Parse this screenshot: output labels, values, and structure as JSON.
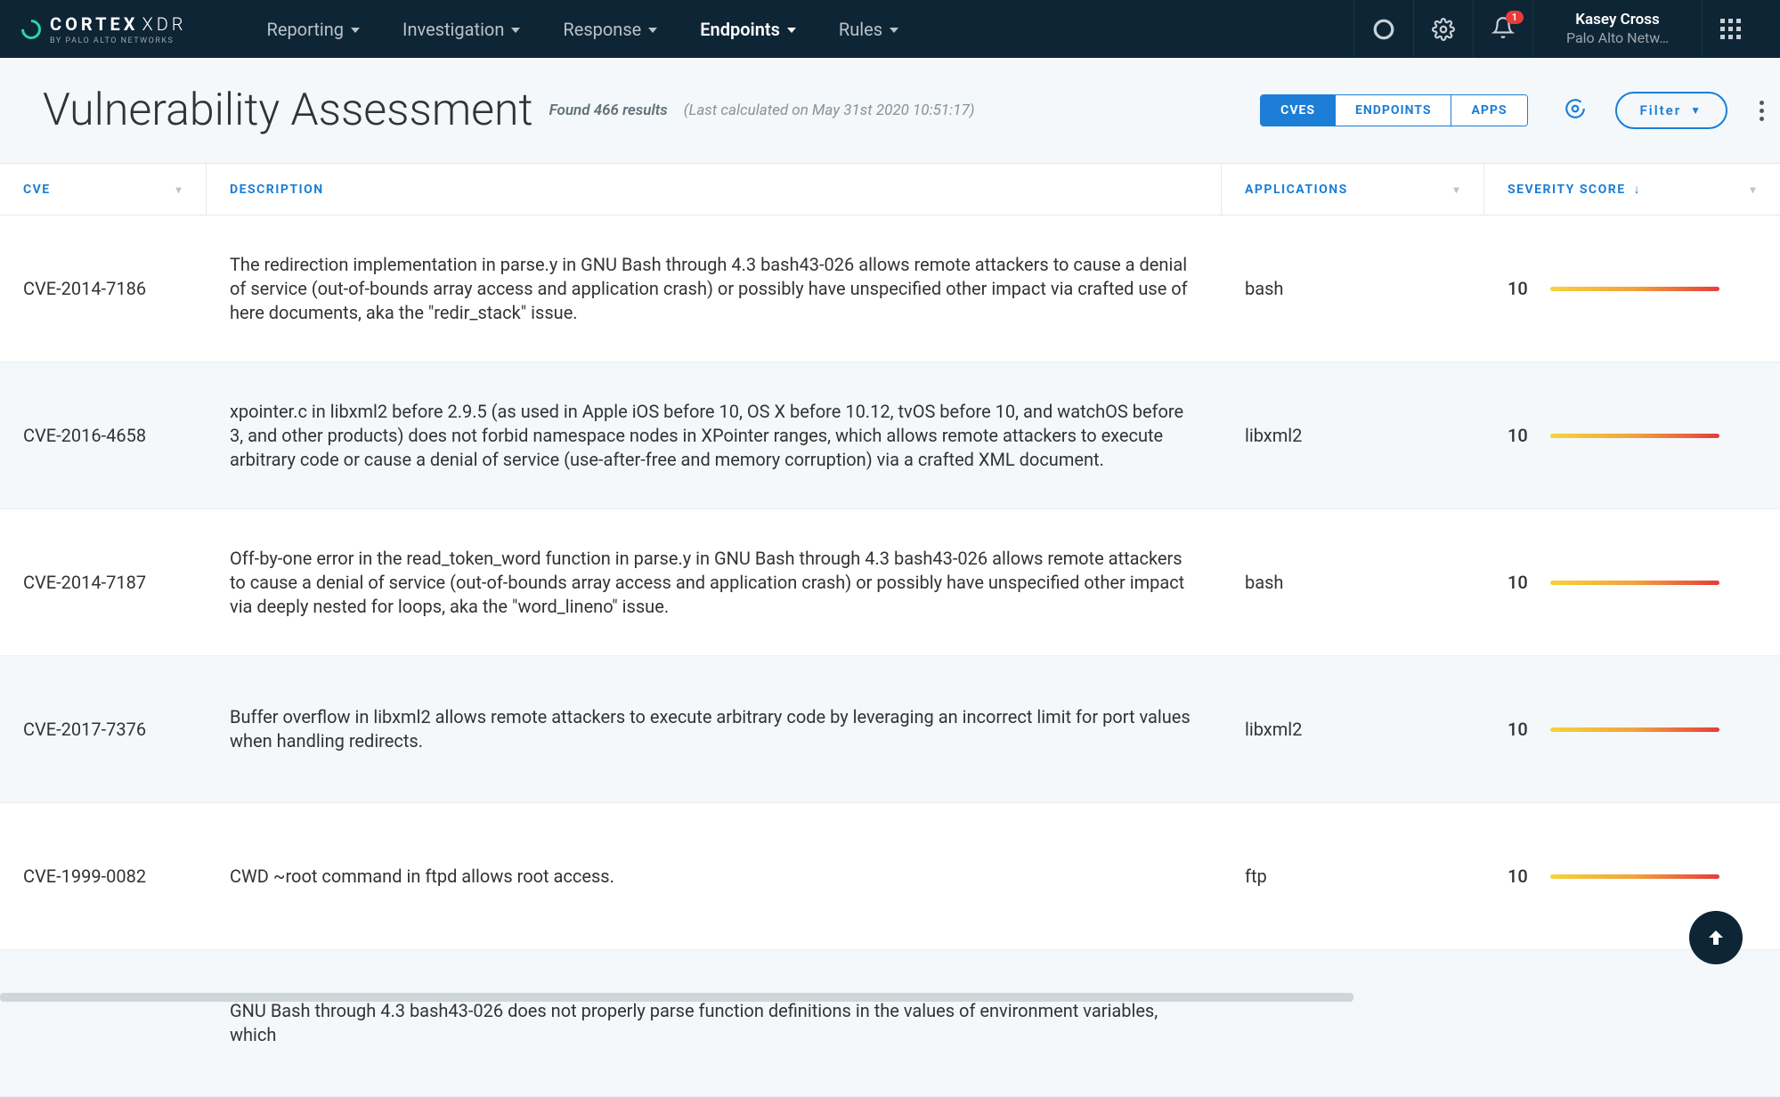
{
  "brand": {
    "main": "CORTEX",
    "suffix": "XDR",
    "sub": "BY PALO ALTO NETWORKS",
    "accent": "#2bd6a6"
  },
  "nav": {
    "items": [
      {
        "label": "Reporting",
        "active": false
      },
      {
        "label": "Investigation",
        "active": false
      },
      {
        "label": "Response",
        "active": false
      },
      {
        "label": "Endpoints",
        "active": true
      },
      {
        "label": "Rules",
        "active": false
      }
    ]
  },
  "user": {
    "name": "Kasey Cross",
    "org": "Palo Alto Netw…",
    "notification_count": "1"
  },
  "page": {
    "title": "Vulnerability Assessment",
    "results_found": "Found 466 results",
    "last_calculated": "(Last calculated on May 31st 2020 10:51:17)",
    "filter_label": "Filter"
  },
  "views": [
    {
      "label": "CVES",
      "active": true
    },
    {
      "label": "ENDPOINTS",
      "active": false
    },
    {
      "label": "APPS",
      "active": false
    }
  ],
  "columns": {
    "cve": "CVE",
    "description": "DESCRIPTION",
    "applications": "APPLICATIONS",
    "severity": "SEVERITY SCORE"
  },
  "rows": [
    {
      "cve": "CVE-2014-7186",
      "description": "The redirection implementation in parse.y in GNU Bash through 4.3 bash43-026 allows remote attackers to cause a denial of service (out-of-bounds array access and application crash) or possibly have unspecified other impact via crafted use of here documents, aka the \"redir_stack\" issue.",
      "applications": "bash",
      "severity": "10"
    },
    {
      "cve": "CVE-2016-4658",
      "description": "xpointer.c in libxml2 before 2.9.5 (as used in Apple iOS before 10, OS X before 10.12, tvOS before 10, and watchOS before 3, and other products) does not forbid namespace nodes in XPointer ranges, which allows remote attackers to execute arbitrary code or cause a denial of service (use-after-free and memory corruption) via a crafted XML document.",
      "applications": "libxml2",
      "severity": "10"
    },
    {
      "cve": "CVE-2014-7187",
      "description": "Off-by-one error in the read_token_word function in parse.y in GNU Bash through 4.3 bash43-026 allows remote attackers to cause a denial of service (out-of-bounds array access and application crash) or possibly have unspecified other impact via deeply nested for loops, aka the \"word_lineno\" issue.",
      "applications": "bash",
      "severity": "10"
    },
    {
      "cve": "CVE-2017-7376",
      "description": "Buffer overflow in libxml2 allows remote attackers to execute arbitrary code by leveraging an incorrect limit for port values when handling redirects.",
      "applications": "libxml2",
      "severity": "10"
    },
    {
      "cve": "CVE-1999-0082",
      "description": "CWD ~root command in ftpd allows root access.",
      "applications": "ftp",
      "severity": "10"
    },
    {
      "cve": "",
      "description": "GNU Bash through 4.3 bash43-026 does not properly parse function definitions in the values of environment variables, which",
      "applications": "",
      "severity": ""
    }
  ],
  "style": {
    "topnav_bg": "#0e2535",
    "link_color": "#1c7ed6",
    "sev_gradient": [
      "#f6d33c",
      "#f2a23c",
      "#e73c3c"
    ],
    "row_alt_bg": "#f4f8fa",
    "border_color": "#e3e9ed"
  }
}
